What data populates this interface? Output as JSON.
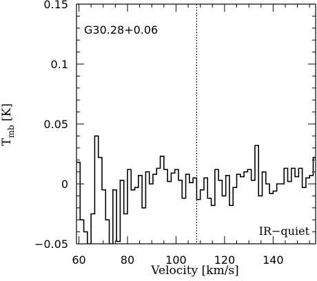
{
  "chart_data": {
    "type": "line",
    "title": "",
    "xlabel": "Velocity [km/s]",
    "ylabel_main": "T",
    "ylabel_sub": "mb",
    "ylabel_unit": " [K]",
    "xlim": [
      59,
      157.5
    ],
    "ylim": [
      -0.05,
      0.15
    ],
    "xticks": [
      60,
      80,
      100,
      120,
      140
    ],
    "yticks": [
      -0.05,
      0,
      0.05,
      0.1,
      0.15
    ],
    "ytick_labels": [
      "−0.05",
      "0",
      "0.05",
      "0.1",
      "0.15"
    ],
    "xticks_minor_step": 5,
    "yticks_minor_step": 0.01,
    "line_style": "steps",
    "vline_x": 108.5,
    "annotations": {
      "source_name": "G30.28+0.06",
      "classification": "IR−quiet"
    },
    "series": [
      {
        "x": [
          59.0,
          60.5,
          62.0,
          63.5,
          65.0,
          66.5,
          68.0,
          69.5,
          71.0,
          72.5,
          74.0,
          75.5,
          77.0,
          78.5,
          80.0,
          81.5,
          83.0,
          84.5,
          86.0,
          87.5,
          89.0,
          90.5,
          92.0,
          93.5,
          95.0,
          96.5,
          98.0,
          99.5,
          101.0,
          102.5,
          104.0,
          105.5,
          107.0,
          108.5,
          110.0,
          111.5,
          113.0,
          114.5,
          116.0,
          117.5,
          119.0,
          120.5,
          122.0,
          123.5,
          125.0,
          126.5,
          128.0,
          129.5,
          131.0,
          132.5,
          134.0,
          135.5,
          137.0,
          138.5,
          140.0,
          141.5,
          143.0,
          144.5,
          146.0,
          147.5,
          149.0,
          150.5,
          152.0,
          153.5,
          155.0,
          156.5
        ],
        "values": [
          0.018,
          -0.03,
          -0.04,
          -0.05,
          -0.025,
          0.04,
          0.022,
          -0.005,
          -0.03,
          -0.05,
          -0.005,
          -0.048,
          0.003,
          -0.025,
          0.012,
          -0.005,
          -0.003,
          0.007,
          -0.02,
          0.01,
          0.0,
          0.008,
          0.013,
          0.023,
          0.012,
          0.002,
          0.009,
          0.012,
          0.003,
          -0.012,
          0.008,
          0.001,
          0.005,
          -0.013,
          -0.005,
          0.005,
          -0.012,
          -0.018,
          0.012,
          0.003,
          -0.01,
          0.007,
          -0.018,
          -0.003,
          0.008,
          0.006,
          0.01,
          0.012,
          0.003,
          0.032,
          -0.01,
          0.01,
          0.0,
          -0.008,
          -0.006,
          0.0,
          0.0,
          0.013,
          0.002,
          0.013,
          0.006,
          0.013,
          -0.003,
          0.005,
          0.007,
          0.022
        ]
      }
    ]
  }
}
